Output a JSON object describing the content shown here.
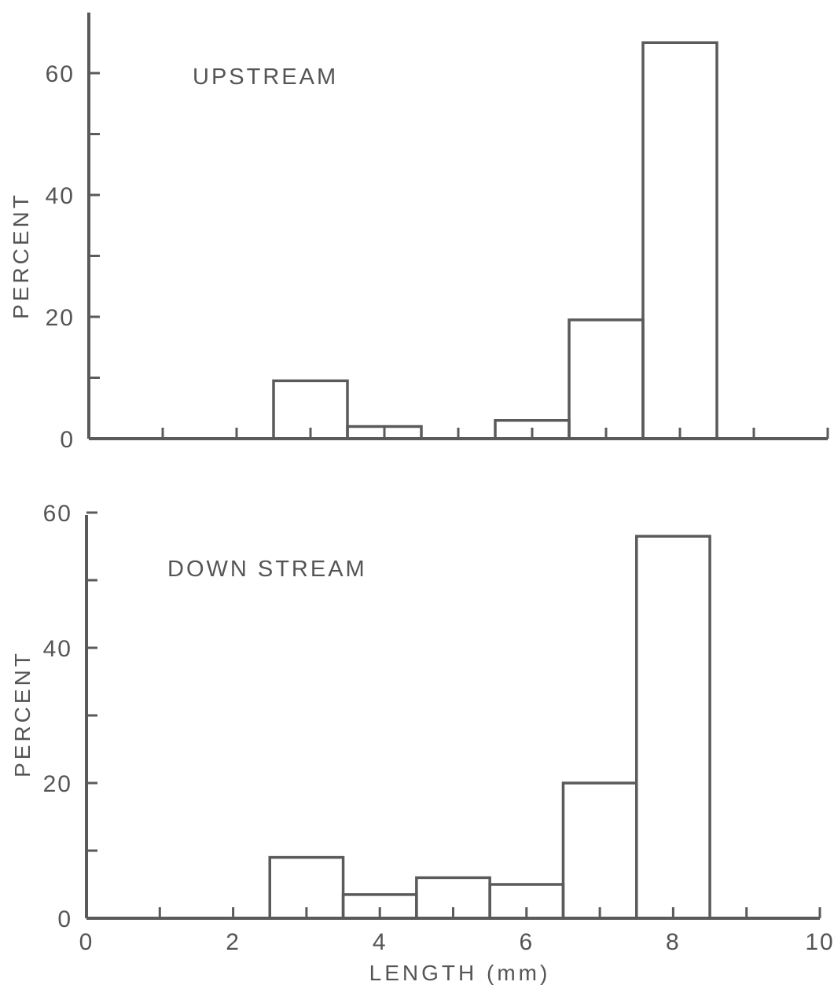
{
  "chart_data": [
    {
      "type": "bar",
      "title": "UPSTREAM",
      "xlabel": "",
      "ylabel": "PERCENT",
      "xlim": [
        0,
        10
      ],
      "ylim": [
        0,
        70
      ],
      "yticks": [
        0,
        20,
        40,
        60
      ],
      "yticks_minor": [
        10,
        30,
        50
      ],
      "xticks_minor": [
        1,
        2,
        3,
        4,
        5,
        6,
        7,
        8,
        9,
        10
      ],
      "bin_width": 1,
      "bins": [
        {
          "center": 3,
          "value": 9.5
        },
        {
          "center": 4,
          "value": 2
        },
        {
          "center": 5,
          "value": 0
        },
        {
          "center": 6,
          "value": 3
        },
        {
          "center": 7,
          "value": 19.5
        },
        {
          "center": 8,
          "value": 65
        }
      ]
    },
    {
      "type": "bar",
      "title": "DOWN STREAM",
      "xlabel": "LENGTH (mm)",
      "ylabel": "PERCENT",
      "xlim": [
        0,
        10
      ],
      "ylim": [
        0,
        60
      ],
      "yticks": [
        0,
        20,
        40,
        60
      ],
      "yticks_minor": [
        10,
        30,
        50
      ],
      "xticks": [
        0,
        2,
        4,
        6,
        8,
        10
      ],
      "xticks_minor": [
        1,
        3,
        5,
        7,
        9
      ],
      "bin_width": 1,
      "bins": [
        {
          "center": 3,
          "value": 9
        },
        {
          "center": 4,
          "value": 3.5
        },
        {
          "center": 5,
          "value": 6
        },
        {
          "center": 6,
          "value": 5
        },
        {
          "center": 7,
          "value": 20
        },
        {
          "center": 8,
          "value": 56.5
        }
      ]
    }
  ]
}
